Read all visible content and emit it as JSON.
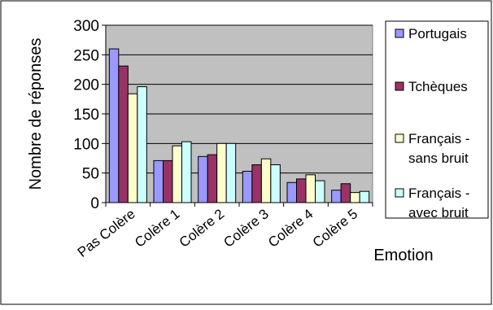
{
  "chart_data": {
    "type": "bar",
    "title": "",
    "xlabel": "Emotion",
    "ylabel": "Nombre de réponses",
    "ylim": [
      0,
      300
    ],
    "yticks": [
      0,
      50,
      100,
      150,
      200,
      250,
      300
    ],
    "grid": true,
    "legend_position": "right",
    "plot_background": "#c0c0c0",
    "categories": [
      "Pas Colère",
      "Colère 1",
      "Colère 2",
      "Colère 3",
      "Colère 4",
      "Colère 5"
    ],
    "series": [
      {
        "name": "Portugais",
        "color": "#9999ff",
        "values": [
          260,
          71,
          78,
          53,
          34,
          21
        ]
      },
      {
        "name": "Tchèques",
        "color": "#993366",
        "values": [
          231,
          71,
          81,
          64,
          40,
          32
        ]
      },
      {
        "name": "Français - sans bruit",
        "legend_lines": [
          "Français -",
          "sans bruit"
        ],
        "color": "#ffffcc",
        "values": [
          184,
          96,
          100,
          74,
          47,
          17
        ]
      },
      {
        "name": "Français - avec bruit",
        "legend_lines": [
          "Français -",
          "avec bruit"
        ],
        "color": "#ccffff",
        "values": [
          196,
          103,
          100,
          64,
          37,
          19
        ]
      }
    ]
  }
}
